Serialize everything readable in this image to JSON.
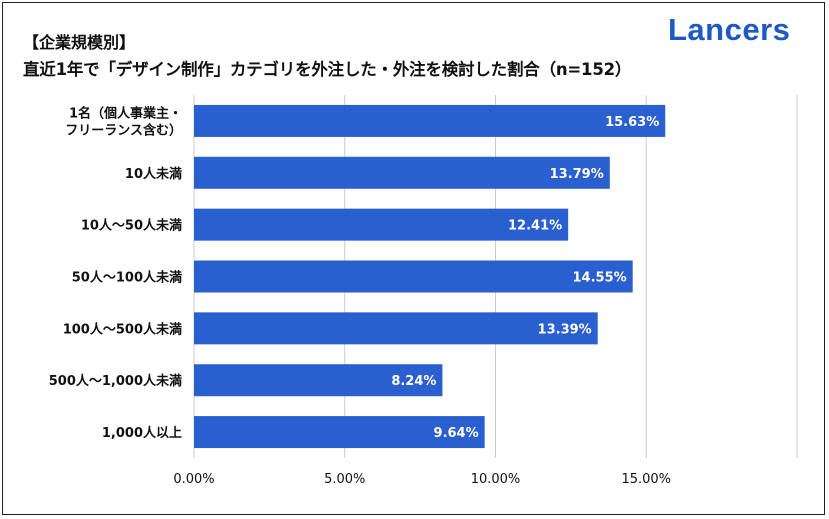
{
  "brand": {
    "name": "Lancers",
    "color": "#1b59c4"
  },
  "chart_data": {
    "type": "bar",
    "orientation": "horizontal",
    "title": "【企業規模別】",
    "subtitle": "直近1年で「デザイン制作」カテゴリを外注した・外注を検討した割合（n=152）",
    "categories": [
      [
        "1名（個人事業主・",
        "フリーランス含む）"
      ],
      [
        "10人未満"
      ],
      [
        "10人～50人未満"
      ],
      [
        "50人～100人未満"
      ],
      [
        "100人～500人未満"
      ],
      [
        "500人～1,000人未満"
      ],
      [
        "1,000人以上"
      ]
    ],
    "values": [
      15.63,
      13.79,
      12.41,
      14.55,
      13.39,
      8.24,
      9.64
    ],
    "data_labels": [
      "15.63%",
      "13.79%",
      "12.41%",
      "14.55%",
      "13.39%",
      "8.24%",
      "9.64%"
    ],
    "x_ticks": [
      0,
      5,
      10,
      15,
      20
    ],
    "x_tick_labels": [
      "0.00%",
      "5.00%",
      "10.00%",
      "15.00%",
      ""
    ],
    "xlim": [
      0,
      20
    ],
    "grid": true,
    "bar_color": "#2a5fcf",
    "gridline_color": "#cccccc"
  }
}
